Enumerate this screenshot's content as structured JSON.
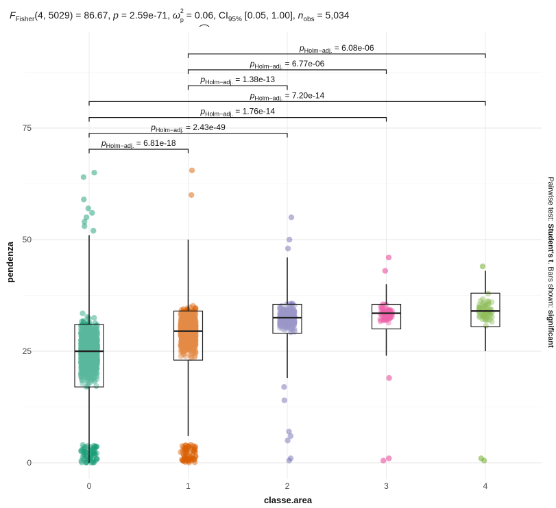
{
  "chart_data": {
    "type": "box+jitter",
    "subtitle": {
      "F": "F",
      "F_sub": "Fisher",
      "F_args": "(4, 5029) = 86.67, ",
      "p_label": "p",
      "p_val": " = 2.59e-71, ",
      "omega": "ω",
      "omega_sup": "2",
      "omega_sub": "p",
      "omega_val": " = 0.06, CI",
      "ci_sub": "95%",
      "ci_val": " [0.05, 1.00], ",
      "n_label": "n",
      "n_sub": "obs",
      "n_val": " = 5,034"
    },
    "xlabel": "classe.area",
    "ylabel": "pendenza",
    "ylim": [
      0,
      92
    ],
    "yticks": [
      0,
      25,
      50,
      75
    ],
    "categories": [
      "0",
      "1",
      "2",
      "3",
      "4"
    ],
    "grid": true,
    "colors": [
      "#1b9e77",
      "#d95f02",
      "#7570b3",
      "#e7298a",
      "#66a61e"
    ],
    "boxes": [
      {
        "category": "0",
        "q1": 17,
        "median": 25,
        "q3": 31,
        "whisker_low": 0,
        "whisker_high": 51,
        "outliers": [
          52,
          53,
          54,
          55,
          56,
          57,
          59,
          64,
          65
        ]
      },
      {
        "category": "1",
        "q1": 23,
        "median": 29.5,
        "q3": 34,
        "whisker_low": 6,
        "whisker_high": 50,
        "outliers": [
          0.5,
          1,
          2,
          3,
          4,
          60,
          65.5
        ]
      },
      {
        "category": "2",
        "q1": 29,
        "median": 32.5,
        "q3": 35.5,
        "whisker_low": 19,
        "whisker_high": 46,
        "outliers": [
          0.5,
          1,
          5,
          6,
          7,
          14,
          17,
          48,
          50,
          55
        ]
      },
      {
        "category": "3",
        "q1": 30,
        "median": 33.5,
        "q3": 35.5,
        "whisker_low": 24,
        "whisker_high": 40,
        "outliers": [
          0.5,
          1,
          19,
          43,
          46
        ]
      },
      {
        "category": "4",
        "q1": 30.5,
        "median": 34,
        "q3": 38,
        "whisker_low": 25,
        "whisker_high": 43,
        "outliers": [
          0.5,
          1,
          44
        ]
      }
    ],
    "comparisons": [
      {
        "from": "0",
        "to": "1",
        "p_label": "p",
        "p_sub": "Holm−adj.",
        "p_value": " = 6.81e-18"
      },
      {
        "from": "0",
        "to": "2",
        "p_label": "p",
        "p_sub": "Holm−adj.",
        "p_value": " = 2.43e-49"
      },
      {
        "from": "0",
        "to": "3",
        "p_label": "p",
        "p_sub": "Holm−adj.",
        "p_value": " = 1.76e-14"
      },
      {
        "from": "0",
        "to": "4",
        "p_label": "p",
        "p_sub": "Holm−adj.",
        "p_value": " = 7.20e-14"
      },
      {
        "from": "1",
        "to": "2",
        "p_label": "p",
        "p_sub": "Holm−adj.",
        "p_value": " = 1.38e-13"
      },
      {
        "from": "1",
        "to": "3",
        "p_label": "p",
        "p_sub": "Holm−adj.",
        "p_value": " = 6.77e-06"
      },
      {
        "from": "1",
        "to": "4",
        "p_label": "p",
        "p_sub": "Holm−adj.",
        "p_value": " = 6.08e-06"
      }
    ],
    "caption": {
      "prefix": "Pairwise test: ",
      "test": "Student's t",
      "middle": ". Bars shown: ",
      "shown": "significant"
    }
  }
}
